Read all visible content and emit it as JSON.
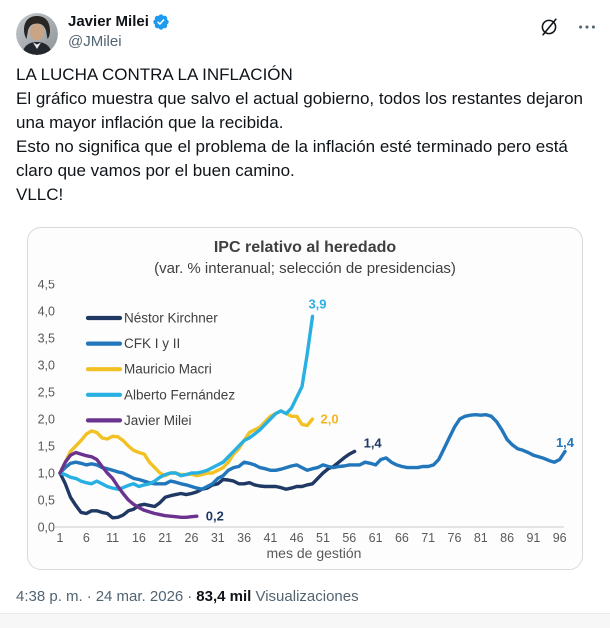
{
  "header": {
    "display_name": "Javier Milei",
    "handle": "@JMilei"
  },
  "tweet": {
    "text": "LA LUCHA CONTRA LA INFLACIÓN\nEl gráfico muestra que salvo el actual gobierno, todos los restantes dejaron una mayor inflación que la recibida.\nEsto no significa que el problema de la inflación esté terminado pero está claro que vamos por el buen camino.\nVLLC!"
  },
  "chart_data": {
    "type": "line",
    "title": "IPC relativo al heredado",
    "subtitle": "(var. % interanual; selección de presidencias)",
    "xlabel": "mes de gestión",
    "x_ticks": [
      1,
      6,
      11,
      16,
      21,
      26,
      31,
      36,
      41,
      46,
      51,
      56,
      61,
      66,
      71,
      76,
      81,
      86,
      91,
      96
    ],
    "xlim": [
      1,
      97
    ],
    "ylim": [
      0,
      4.5
    ],
    "y_tick_step": 0.5,
    "grid": false,
    "legend_position": "top-left-inside",
    "axis_color": "#d6d6d6",
    "series": [
      {
        "name": "Néstor Kirchner",
        "color": "#1F3864",
        "end_label": "1,4",
        "end_label_color": "#1F3864",
        "values": [
          1.0,
          0.8,
          0.55,
          0.4,
          0.27,
          0.25,
          0.3,
          0.3,
          0.27,
          0.25,
          0.17,
          0.18,
          0.22,
          0.3,
          0.33,
          0.4,
          0.42,
          0.4,
          0.38,
          0.45,
          0.55,
          0.58,
          0.6,
          0.62,
          0.6,
          0.62,
          0.65,
          0.7,
          0.72,
          0.78,
          0.8,
          0.88,
          0.87,
          0.85,
          0.8,
          0.8,
          0.82,
          0.78,
          0.76,
          0.75,
          0.75,
          0.75,
          0.73,
          0.7,
          0.72,
          0.75,
          0.75,
          0.78,
          0.8,
          0.9,
          1.0,
          1.08,
          1.12,
          1.2,
          1.28,
          1.35,
          1.4
        ]
      },
      {
        "name": "CFK I y II",
        "color": "#2176BC",
        "end_label": "1,4",
        "end_label_color": "#2176BC",
        "values": [
          1.0,
          1.1,
          1.18,
          1.2,
          1.18,
          1.15,
          1.17,
          1.15,
          1.1,
          1.08,
          1.05,
          1.02,
          1.0,
          0.95,
          0.9,
          0.88,
          0.85,
          0.82,
          0.8,
          0.8,
          0.8,
          0.85,
          0.83,
          0.8,
          0.78,
          0.75,
          0.72,
          0.7,
          0.75,
          0.8,
          0.9,
          0.95,
          1.05,
          1.1,
          1.12,
          1.2,
          1.18,
          1.15,
          1.1,
          1.08,
          1.05,
          1.05,
          1.07,
          1.1,
          1.13,
          1.15,
          1.1,
          1.05,
          1.08,
          1.1,
          1.15,
          1.12,
          1.1,
          1.12,
          1.13,
          1.15,
          1.15,
          1.15,
          1.2,
          1.18,
          1.15,
          1.25,
          1.28,
          1.2,
          1.15,
          1.12,
          1.1,
          1.1,
          1.1,
          1.12,
          1.12,
          1.15,
          1.25,
          1.45,
          1.65,
          1.85,
          2.0,
          2.05,
          2.07,
          2.08,
          2.07,
          2.08,
          2.05,
          1.95,
          1.8,
          1.62,
          1.52,
          1.45,
          1.42,
          1.38,
          1.33,
          1.3,
          1.27,
          1.23,
          1.2,
          1.25,
          1.4
        ]
      },
      {
        "name": "Mauricio Macri",
        "color": "#F2C124",
        "end_label": "2,0",
        "end_label_color": "#F2B524",
        "values": [
          1.0,
          1.2,
          1.4,
          1.5,
          1.6,
          1.72,
          1.78,
          1.75,
          1.65,
          1.63,
          1.68,
          1.67,
          1.6,
          1.5,
          1.42,
          1.38,
          1.35,
          1.2,
          1.1,
          1.0,
          0.95,
          1.0,
          1.0,
          0.97,
          0.97,
          0.98,
          0.95,
          0.97,
          1.0,
          1.0,
          1.05,
          1.1,
          1.2,
          1.35,
          1.45,
          1.6,
          1.75,
          1.8,
          1.85,
          1.95,
          2.05,
          2.1,
          2.15,
          2.1,
          2.05,
          2.05,
          1.9,
          1.88,
          2.0
        ]
      },
      {
        "name": "Alberto Fernández",
        "color": "#29B0E2",
        "end_label": "3,9",
        "end_label_color": "#29B0E2",
        "values": [
          1.0,
          0.97,
          0.92,
          0.9,
          0.85,
          0.82,
          0.8,
          0.85,
          0.8,
          0.75,
          0.72,
          0.7,
          0.73,
          0.77,
          0.8,
          0.75,
          0.78,
          0.8,
          0.85,
          0.92,
          0.97,
          1.0,
          1.0,
          0.95,
          0.97,
          1.0,
          1.0,
          1.02,
          1.05,
          1.1,
          1.15,
          1.2,
          1.3,
          1.4,
          1.5,
          1.6,
          1.65,
          1.72,
          1.8,
          1.9,
          2.0,
          2.1,
          2.15,
          2.1,
          2.2,
          2.4,
          2.6,
          3.2,
          3.9
        ]
      },
      {
        "name": "Javier Milei",
        "color": "#6B3390",
        "end_label": "0,2",
        "end_label_color": "#1F3864",
        "values": [
          1.0,
          1.2,
          1.33,
          1.38,
          1.35,
          1.32,
          1.3,
          1.25,
          1.12,
          1.0,
          0.9,
          0.75,
          0.62,
          0.5,
          0.42,
          0.36,
          0.31,
          0.28,
          0.25,
          0.23,
          0.21,
          0.2,
          0.19,
          0.18,
          0.18,
          0.19,
          0.2
        ]
      }
    ]
  },
  "footer": {
    "time": "4:38 p. m.",
    "separator": "·",
    "date": "24 mar. 2026",
    "views_count": "83,4 mil",
    "views_label": "Visualizaciones"
  }
}
